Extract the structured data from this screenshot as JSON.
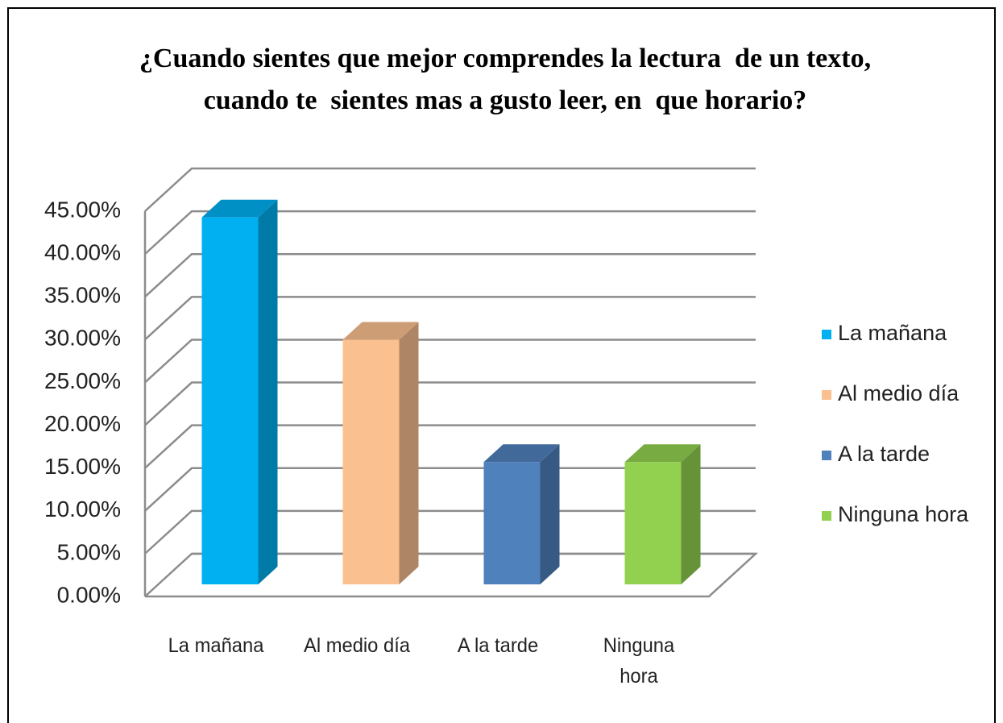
{
  "chart_data": {
    "type": "bar3d",
    "title": [
      "¿Cuando sientes que mejor comprendes la lectura  de un texto,",
      "cuando te  sientes mas a gusto leer, en  que horario?"
    ],
    "categories": [
      "La mañana",
      "Al medio día",
      "A la tarde",
      "Ninguna hora"
    ],
    "values": [
      42.86,
      28.57,
      14.29,
      14.29
    ],
    "colors": [
      "#00b0f0",
      "#fac090",
      "#4f81bd",
      "#92d050"
    ],
    "ylim": [
      0,
      45
    ],
    "yticks": [
      {
        "value": 0,
        "label": "0.00%"
      },
      {
        "value": 5,
        "label": "5.00%"
      },
      {
        "value": 10,
        "label": "10.00%"
      },
      {
        "value": 15,
        "label": "15.00%"
      },
      {
        "value": 20,
        "label": "20.00%"
      },
      {
        "value": 25,
        "label": "25.00%"
      },
      {
        "value": 30,
        "label": "30.00%"
      },
      {
        "value": 35,
        "label": "35.00%"
      },
      {
        "value": 40,
        "label": "40.00%"
      },
      {
        "value": 45,
        "label": "45.00%"
      }
    ],
    "grid": true,
    "legend": "right"
  }
}
